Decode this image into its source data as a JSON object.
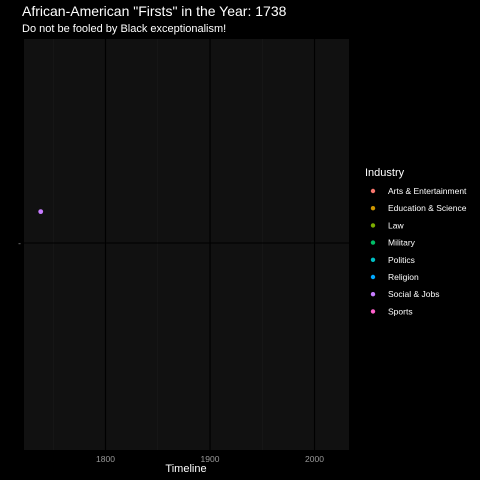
{
  "chart_data": {
    "type": "scatter",
    "title": "African-American \"Firsts\" in the Year: 1738",
    "subtitle": "Do not be fooled by Black exceptionalism!",
    "xlabel": "Timeline",
    "ylabel": "",
    "xlim": [
      1722,
      2033
    ],
    "x_ticks": [
      1800,
      1900,
      2000
    ],
    "x_tick_labels": [
      "1800",
      "1900",
      "2000"
    ],
    "y_tick_label": "-",
    "grid": true,
    "legend": {
      "title": "Industry",
      "placement": "right",
      "entries": [
        {
          "name": "Arts & Entertainment",
          "color": "#F8766D"
        },
        {
          "name": "Education & Science",
          "color": "#CD9600"
        },
        {
          "name": "Law",
          "color": "#7CAE00"
        },
        {
          "name": "Military",
          "color": "#00BE67"
        },
        {
          "name": "Politics",
          "color": "#00BFC4"
        },
        {
          "name": "Religion",
          "color": "#00A9FF"
        },
        {
          "name": "Social & Jobs",
          "color": "#C77CFF"
        },
        {
          "name": "Sports",
          "color": "#FF61CC"
        }
      ]
    },
    "points": [
      {
        "x": 1738,
        "y_offset": 0.16,
        "industry": "Social & Jobs",
        "color": "#C77CFF"
      }
    ],
    "colors": {
      "background": "#000000",
      "panel": "#111111",
      "grid_major": "#000000",
      "grid_minor": "#1a1a1a"
    }
  }
}
